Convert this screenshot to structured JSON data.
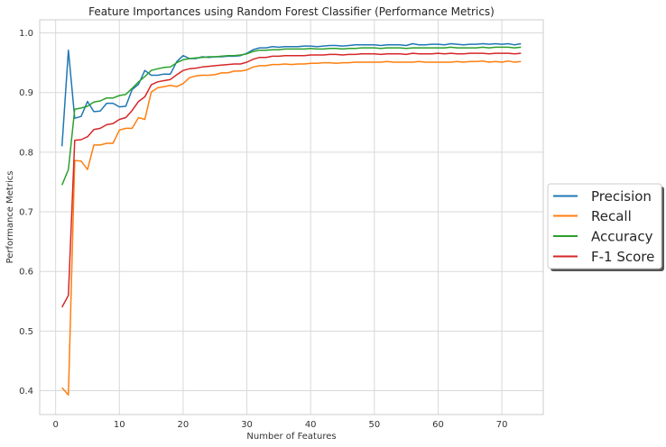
{
  "chart_data": {
    "type": "line",
    "title": "Feature Importances using Random Forest Classifier (Performance Metrics)",
    "xlabel": "Number of Features",
    "ylabel": "Performance Metrics",
    "xlim": [
      -2.5,
      76.5
    ],
    "ylim": [
      0.36,
      1.022
    ],
    "xticks": [
      0,
      10,
      20,
      30,
      40,
      50,
      60,
      70
    ],
    "yticks": [
      0.4,
      0.5,
      0.6,
      0.7,
      0.8,
      0.9,
      1.0
    ],
    "xtick_labels": [
      "0",
      "10",
      "20",
      "30",
      "40",
      "50",
      "60",
      "70"
    ],
    "ytick_labels": [
      "0.4",
      "0.5",
      "0.6",
      "0.7",
      "0.8",
      "0.9",
      "1.0"
    ],
    "grid": true,
    "legend_position": "outside-right",
    "x": [
      1,
      2,
      3,
      4,
      5,
      6,
      7,
      8,
      9,
      10,
      11,
      12,
      13,
      14,
      15,
      16,
      17,
      18,
      19,
      20,
      21,
      22,
      23,
      24,
      25,
      26,
      27,
      28,
      29,
      30,
      31,
      32,
      33,
      34,
      35,
      36,
      37,
      38,
      39,
      40,
      41,
      42,
      43,
      44,
      45,
      46,
      47,
      48,
      49,
      50,
      51,
      52,
      53,
      54,
      55,
      56,
      57,
      58,
      59,
      60,
      61,
      62,
      63,
      64,
      65,
      66,
      67,
      68,
      69,
      70,
      71,
      72,
      73
    ],
    "series": [
      {
        "name": "Precision",
        "color": "#1f77b4",
        "values": [
          0.81,
          0.971,
          0.857,
          0.86,
          0.885,
          0.868,
          0.869,
          0.882,
          0.882,
          0.876,
          0.877,
          0.905,
          0.914,
          0.937,
          0.929,
          0.929,
          0.931,
          0.931,
          0.952,
          0.962,
          0.957,
          0.957,
          0.96,
          0.959,
          0.96,
          0.96,
          0.961,
          0.961,
          0.962,
          0.966,
          0.972,
          0.975,
          0.975,
          0.977,
          0.976,
          0.977,
          0.977,
          0.977,
          0.978,
          0.978,
          0.977,
          0.978,
          0.979,
          0.979,
          0.978,
          0.979,
          0.98,
          0.98,
          0.98,
          0.98,
          0.979,
          0.98,
          0.98,
          0.98,
          0.979,
          0.982,
          0.98,
          0.98,
          0.981,
          0.981,
          0.98,
          0.982,
          0.981,
          0.98,
          0.981,
          0.981,
          0.982,
          0.981,
          0.982,
          0.981,
          0.982,
          0.98,
          0.982
        ]
      },
      {
        "name": "Recall",
        "color": "#ff7f0e",
        "values": [
          0.405,
          0.393,
          0.786,
          0.785,
          0.771,
          0.812,
          0.812,
          0.815,
          0.815,
          0.837,
          0.84,
          0.84,
          0.858,
          0.855,
          0.901,
          0.908,
          0.91,
          0.912,
          0.91,
          0.915,
          0.925,
          0.928,
          0.929,
          0.929,
          0.93,
          0.933,
          0.933,
          0.936,
          0.936,
          0.938,
          0.943,
          0.945,
          0.945,
          0.947,
          0.947,
          0.948,
          0.947,
          0.948,
          0.948,
          0.949,
          0.949,
          0.95,
          0.95,
          0.949,
          0.95,
          0.95,
          0.951,
          0.951,
          0.951,
          0.951,
          0.951,
          0.952,
          0.951,
          0.951,
          0.951,
          0.951,
          0.952,
          0.951,
          0.951,
          0.951,
          0.951,
          0.951,
          0.952,
          0.951,
          0.952,
          0.952,
          0.953,
          0.951,
          0.952,
          0.951,
          0.953,
          0.951,
          0.952
        ]
      },
      {
        "name": "Accuracy",
        "color": "#2ca02c",
        "values": [
          0.745,
          0.771,
          0.872,
          0.874,
          0.877,
          0.884,
          0.886,
          0.891,
          0.891,
          0.895,
          0.897,
          0.907,
          0.918,
          0.927,
          0.937,
          0.94,
          0.942,
          0.943,
          0.95,
          0.955,
          0.957,
          0.958,
          0.959,
          0.96,
          0.96,
          0.961,
          0.962,
          0.962,
          0.963,
          0.965,
          0.969,
          0.971,
          0.971,
          0.972,
          0.972,
          0.973,
          0.973,
          0.973,
          0.973,
          0.974,
          0.973,
          0.973,
          0.974,
          0.974,
          0.973,
          0.974,
          0.974,
          0.975,
          0.975,
          0.975,
          0.974,
          0.975,
          0.975,
          0.975,
          0.974,
          0.975,
          0.975,
          0.975,
          0.975,
          0.975,
          0.975,
          0.976,
          0.975,
          0.975,
          0.975,
          0.975,
          0.976,
          0.975,
          0.976,
          0.976,
          0.976,
          0.975,
          0.976
        ]
      },
      {
        "name": "F-1 Score",
        "color": "#d62728",
        "values": [
          0.54,
          0.56,
          0.82,
          0.821,
          0.826,
          0.838,
          0.84,
          0.846,
          0.848,
          0.855,
          0.858,
          0.87,
          0.885,
          0.893,
          0.913,
          0.918,
          0.92,
          0.922,
          0.93,
          0.937,
          0.94,
          0.941,
          0.943,
          0.944,
          0.945,
          0.946,
          0.947,
          0.948,
          0.948,
          0.951,
          0.956,
          0.959,
          0.959,
          0.961,
          0.961,
          0.962,
          0.962,
          0.962,
          0.962,
          0.963,
          0.963,
          0.963,
          0.964,
          0.964,
          0.963,
          0.964,
          0.964,
          0.965,
          0.965,
          0.965,
          0.964,
          0.965,
          0.965,
          0.965,
          0.964,
          0.966,
          0.965,
          0.965,
          0.965,
          0.966,
          0.965,
          0.966,
          0.965,
          0.965,
          0.966,
          0.966,
          0.966,
          0.965,
          0.966,
          0.966,
          0.966,
          0.965,
          0.966
        ]
      }
    ]
  }
}
